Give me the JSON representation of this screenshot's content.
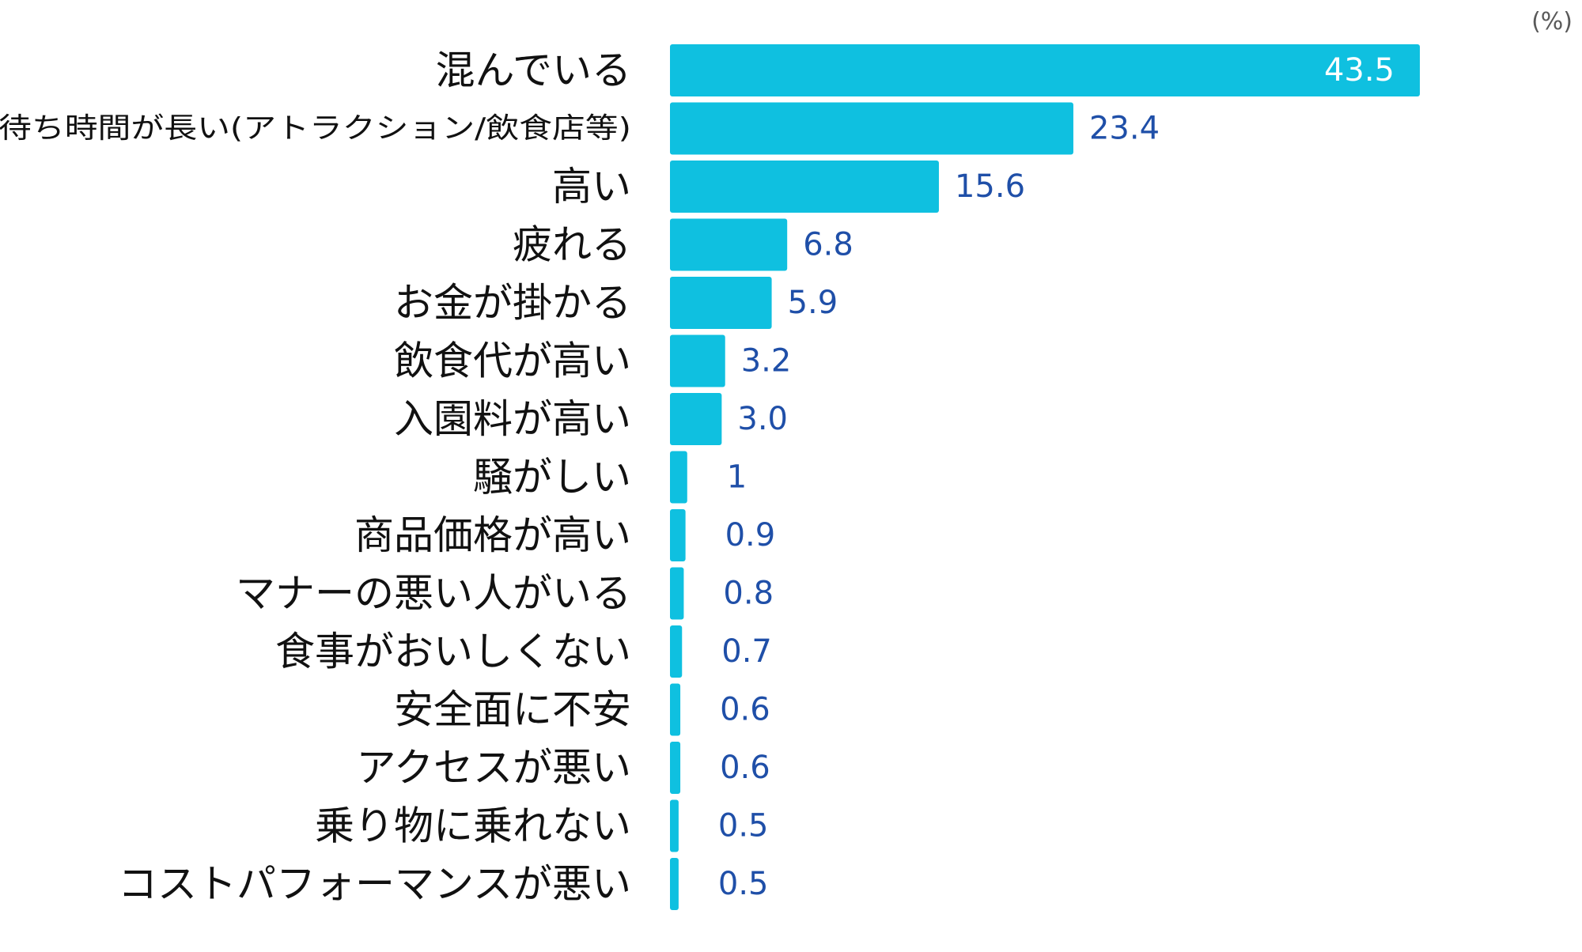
{
  "unit_label": "(%)",
  "colors": {
    "bar": "#0fc0e0",
    "value_label": "#1f4fa8",
    "value_label_inside": "#ffffff",
    "category_label": "#111111"
  },
  "chart_data": {
    "type": "bar",
    "orientation": "horizontal",
    "unit": "%",
    "categories": [
      "混んでいる",
      "待ち時間が長い(アトラクション/飲食店等)",
      "高い",
      "疲れる",
      "お金が掛かる",
      "飲食代が高い",
      "入園料が高い",
      "騒がしい",
      "商品価格が高い",
      "マナーの悪い人がいる",
      "食事がおいしくない",
      "安全面に不安",
      "アクセスが悪い",
      "乗り物に乗れない",
      "コストパフォーマンスが悪い"
    ],
    "values": [
      43.5,
      23.4,
      15.6,
      6.8,
      5.9,
      3.2,
      3.0,
      1,
      0.9,
      0.8,
      0.7,
      0.6,
      0.6,
      0.5,
      0.5
    ],
    "value_labels": [
      "43.5",
      "23.4",
      "15.6",
      "6.8",
      "5.9",
      "3.2",
      "3.0",
      "1",
      "0.9",
      "0.8",
      "0.7",
      "0.6",
      "0.6",
      "0.5",
      "0.5"
    ],
    "xlim": [
      0,
      43.5
    ],
    "grid": false,
    "legend": "none"
  }
}
